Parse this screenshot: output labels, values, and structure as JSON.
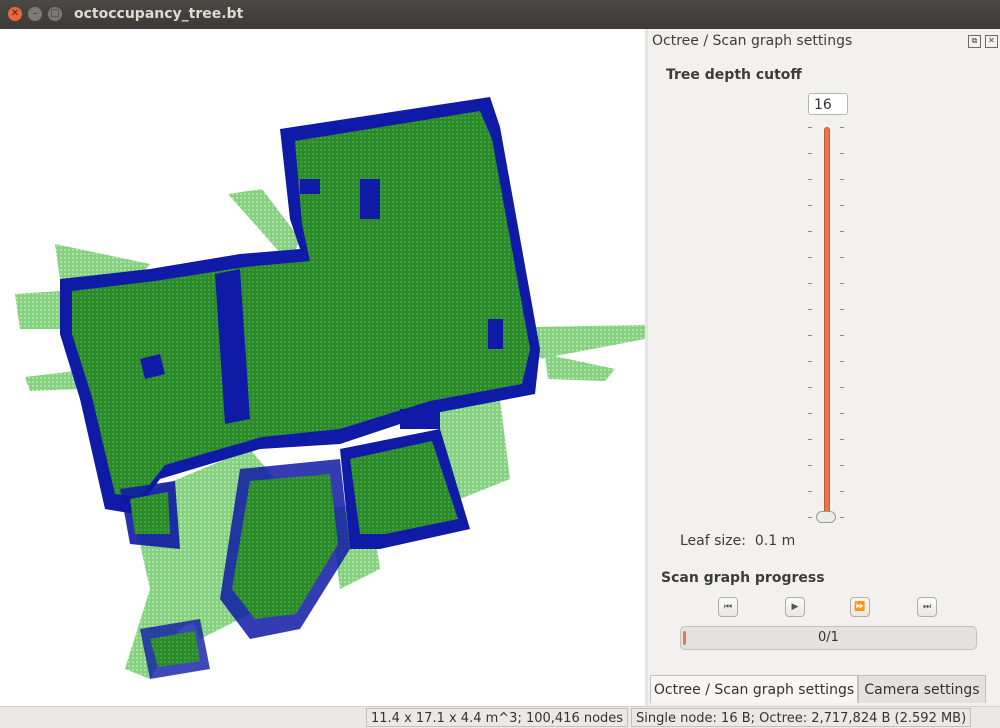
{
  "window": {
    "title": "octoccupancy_tree.bt"
  },
  "dock": {
    "title": "Octree / Scan graph settings",
    "tree_depth": {
      "label": "Tree depth cutoff",
      "value": "16"
    },
    "leaf_size": {
      "label": "Leaf size:",
      "value": "0.1 m"
    },
    "scan_graph": {
      "label": "Scan graph progress",
      "progress_text": "0/1",
      "progress_fraction": 0.0,
      "buttons": [
        "skip-back-icon",
        "play-icon",
        "fast-forward-icon",
        "skip-forward-icon"
      ]
    }
  },
  "tabs": [
    {
      "label": "Octree / Scan graph settings",
      "active": true
    },
    {
      "label": "Camera settings",
      "active": false
    }
  ],
  "status": {
    "dimensions": "11.4 x 17.1 x 4.4 m^3; 100,416 nodes",
    "memory": "Single node: 16 B; Octree: 2,717,824 B (2.592 MB)"
  },
  "colors": {
    "occupied_edge": "#0f1aa6",
    "occupied_fill": "#2e8a2c",
    "free_green": "#8fd88a",
    "accent": "#e9774a"
  }
}
